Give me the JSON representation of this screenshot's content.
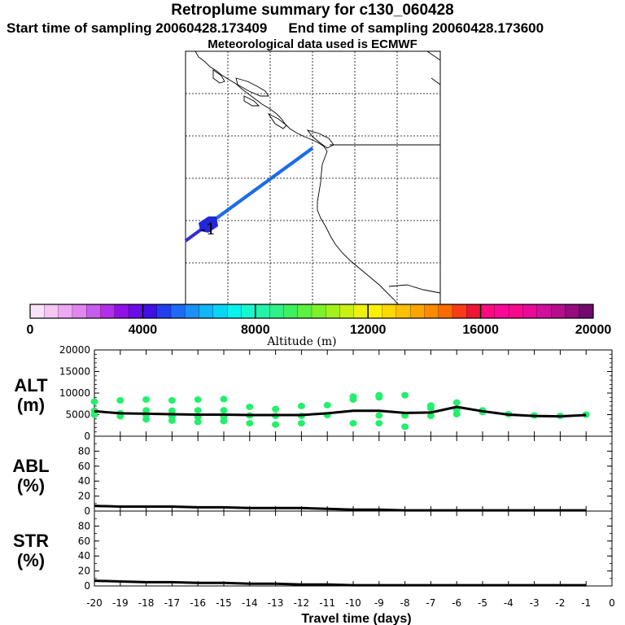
{
  "header": {
    "title": "Retroplume summary for c130_060428",
    "start": "Start time of sampling 20060428.173409",
    "end": "End time of sampling 20060428.173600",
    "met": "Meteorological data used is ECMWF"
  },
  "map": {
    "plume_label": "-1",
    "track_color": "#1a6fe6"
  },
  "colorbar": {
    "title": "Altitude (m)",
    "ticks": [
      "0",
      "4000",
      "8000",
      "12000",
      "16000",
      "20000"
    ],
    "colors": [
      "#fbe2fb",
      "#f4c6f4",
      "#ecaaf2",
      "#df86ef",
      "#c85ced",
      "#b22ee8",
      "#9010e6",
      "#6a0ce8",
      "#3f10e8",
      "#2040f0",
      "#1e6af2",
      "#1c90f4",
      "#10b6f6",
      "#06d6f4",
      "#08f2ee",
      "#18f6cc",
      "#24f4a8",
      "#30f086",
      "#3ef060",
      "#5cf040",
      "#7ef02c",
      "#a4f01e",
      "#c8f014",
      "#eef010",
      "#fbf000",
      "#fbd800",
      "#fbc000",
      "#fba600",
      "#fb8a00",
      "#fb6a00",
      "#f93c18",
      "#ef1434",
      "#fb0a80",
      "#fb0898",
      "#f80a8c",
      "#e80a98",
      "#d0109a",
      "#b40e8c",
      "#940c7e",
      "#700a6e"
    ]
  },
  "chart_data": [
    {
      "type": "line",
      "panel": "ALT (m)",
      "ylabel": [
        "ALT",
        "(m)"
      ],
      "ylim": [
        0,
        20000
      ],
      "yticks": [
        "20000",
        "15000",
        "10000",
        "5000",
        "0"
      ],
      "x": [
        -20,
        -19,
        -18,
        -17,
        -16,
        -15,
        -14,
        -13,
        -12,
        -11,
        -10,
        -9,
        -8,
        -7,
        -6,
        -5,
        -4,
        -3,
        -2,
        -1
      ],
      "values": [
        5800,
        5300,
        5200,
        5100,
        5000,
        5000,
        4900,
        4900,
        4900,
        5300,
        5900,
        5900,
        5400,
        5500,
        6800,
        5800,
        5000,
        4700,
        4600,
        4900
      ],
      "scatter": [
        {
          "x": -20,
          "y": [
            8000,
            5900,
            5000
          ]
        },
        {
          "x": -19,
          "y": [
            8300,
            5300,
            4600
          ]
        },
        {
          "x": -18,
          "y": [
            8500,
            6000,
            4900,
            3900
          ]
        },
        {
          "x": -17,
          "y": [
            8300,
            5900,
            4600,
            3600
          ]
        },
        {
          "x": -16,
          "y": [
            8500,
            6000,
            4500,
            3300
          ]
        },
        {
          "x": -15,
          "y": [
            8600,
            6000,
            4500,
            3500
          ]
        },
        {
          "x": -14,
          "y": [
            6800,
            4800,
            3000
          ]
        },
        {
          "x": -13,
          "y": [
            6300,
            4700,
            2700
          ]
        },
        {
          "x": -12,
          "y": [
            7000,
            4700,
            3000
          ]
        },
        {
          "x": -11,
          "y": [
            7200,
            4900
          ]
        },
        {
          "x": -10,
          "y": [
            9200,
            8500,
            3000
          ]
        },
        {
          "x": -9,
          "y": [
            9500,
            9000,
            4800,
            3000
          ]
        },
        {
          "x": -8,
          "y": [
            9500,
            4800,
            2200
          ]
        },
        {
          "x": -7,
          "y": [
            7100,
            6500,
            4700
          ]
        },
        {
          "x": -6,
          "y": [
            7800,
            6200,
            5100
          ]
        },
        {
          "x": -5,
          "y": [
            6000,
            5600
          ]
        },
        {
          "x": -4,
          "y": [
            5100
          ]
        },
        {
          "x": -3,
          "y": [
            4800
          ]
        },
        {
          "x": -2,
          "y": [
            4700
          ]
        },
        {
          "x": -1,
          "y": [
            5000
          ]
        }
      ]
    },
    {
      "type": "line",
      "panel": "ABL (%)",
      "ylabel": [
        "ABL",
        "(%)"
      ],
      "ylim": [
        0,
        100
      ],
      "yticks": [
        "80",
        "60",
        "40",
        "20",
        "0"
      ],
      "x": [
        -20,
        -19,
        -18,
        -17,
        -16,
        -15,
        -14,
        -13,
        -12,
        -11,
        -10,
        -9,
        -8,
        -7,
        -6,
        -5,
        -4,
        -3,
        -2,
        -1
      ],
      "values": [
        7,
        6,
        6,
        6,
        5,
        5,
        4,
        4,
        4,
        3,
        2,
        2,
        1,
        1,
        1,
        1,
        1,
        1,
        1,
        1
      ]
    },
    {
      "type": "line",
      "panel": "STR (%)",
      "ylabel": [
        "STR",
        "(%)"
      ],
      "ylim": [
        0,
        100
      ],
      "yticks": [
        "80",
        "60",
        "40",
        "20",
        "0"
      ],
      "x": [
        -20,
        -19,
        -18,
        -17,
        -16,
        -15,
        -14,
        -13,
        -12,
        -11,
        -10,
        -9,
        -8,
        -7,
        -6,
        -5,
        -4,
        -3,
        -2,
        -1
      ],
      "values": [
        7,
        6,
        5,
        5,
        4,
        4,
        3,
        3,
        2,
        2,
        1,
        1,
        1,
        1,
        1,
        1,
        1,
        1,
        1,
        1
      ]
    }
  ],
  "xaxis": {
    "title": "Travel time (days)",
    "ticks": [
      "-20",
      "-19",
      "-18",
      "-17",
      "-16",
      "-15",
      "-14",
      "-13",
      "-12",
      "-11",
      "-10",
      "-9",
      "-8",
      "-7",
      "-6",
      "-5",
      "-4",
      "-3",
      "-2",
      "-1",
      "0"
    ]
  }
}
